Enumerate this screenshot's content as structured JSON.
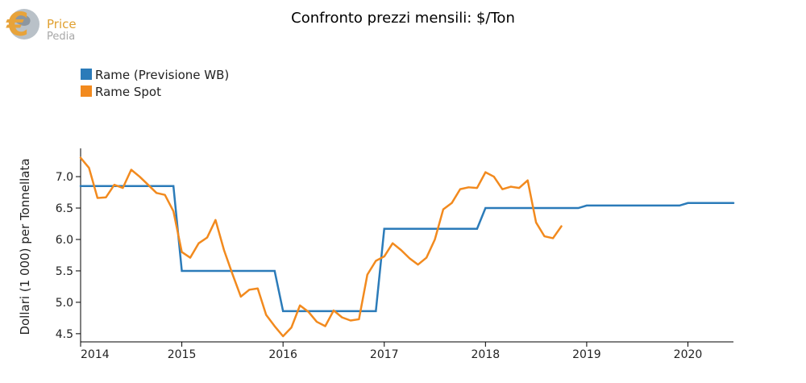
{
  "logo": {
    "word1": "Price",
    "word2": "Pedia",
    "currency_symbol": "€",
    "colors": {
      "orange": "#e8a33a",
      "grey": "#9aa4ad"
    }
  },
  "chart_data": {
    "type": "line",
    "title": "Confronto prezzi mensili: $/Ton",
    "xlabel": "",
    "ylabel": "Dollari (1 000) per Tonnellata",
    "xlim": [
      2014.0,
      2020.45
    ],
    "ylim": [
      4.37,
      7.45
    ],
    "x_ticks": [
      2014,
      2015,
      2016,
      2017,
      2018,
      2019,
      2020
    ],
    "y_ticks": [
      4.5,
      5.0,
      5.5,
      6.0,
      6.5,
      7.0
    ],
    "y_tick_labels": [
      "4.5",
      "5.0",
      "5.5",
      "6.0",
      "6.5",
      "7.0"
    ],
    "grid": false,
    "legend_position": "top-left",
    "series": [
      {
        "name": "Rame (Previsione WB)",
        "color": "#2b7bb9",
        "step": true,
        "x": [
          2014.0,
          2014.917,
          2015.0,
          2015.917,
          2016.0,
          2016.917,
          2017.0,
          2017.917,
          2018.0,
          2018.917,
          2019.0,
          2019.917,
          2020.0,
          2020.45
        ],
        "y": [
          6.85,
          6.85,
          5.5,
          5.5,
          4.86,
          4.86,
          6.17,
          6.17,
          6.5,
          6.5,
          6.54,
          6.54,
          6.58,
          6.58
        ]
      },
      {
        "name": "Rame Spot",
        "color": "#f28a1e",
        "step": false,
        "x": [
          2014.0,
          2014.083,
          2014.167,
          2014.25,
          2014.333,
          2014.417,
          2014.5,
          2014.583,
          2014.667,
          2014.75,
          2014.833,
          2014.917,
          2015.0,
          2015.083,
          2015.167,
          2015.25,
          2015.333,
          2015.417,
          2015.5,
          2015.583,
          2015.667,
          2015.75,
          2015.833,
          2015.917,
          2016.0,
          2016.083,
          2016.167,
          2016.25,
          2016.333,
          2016.417,
          2016.5,
          2016.583,
          2016.667,
          2016.75,
          2016.833,
          2016.917,
          2017.0,
          2017.083,
          2017.167,
          2017.25,
          2017.333,
          2017.417,
          2017.5,
          2017.583,
          2017.667,
          2017.75,
          2017.833,
          2017.917,
          2018.0,
          2018.083,
          2018.167,
          2018.25,
          2018.333,
          2018.417,
          2018.5,
          2018.583,
          2018.667,
          2018.75
        ],
        "y": [
          7.3,
          7.14,
          6.66,
          6.67,
          6.87,
          6.82,
          7.11,
          7.0,
          6.87,
          6.74,
          6.71,
          6.45,
          5.8,
          5.71,
          5.94,
          6.03,
          6.31,
          5.83,
          5.45,
          5.09,
          5.2,
          5.22,
          4.8,
          4.62,
          4.46,
          4.6,
          4.95,
          4.85,
          4.69,
          4.62,
          4.87,
          4.76,
          4.71,
          4.73,
          5.44,
          5.66,
          5.73,
          5.94,
          5.83,
          5.7,
          5.6,
          5.71,
          6.0,
          6.48,
          6.58,
          6.8,
          6.83,
          6.82,
          7.07,
          7.0,
          6.8,
          6.84,
          6.82,
          6.94,
          6.27,
          6.05,
          6.02,
          6.21
        ]
      }
    ]
  }
}
